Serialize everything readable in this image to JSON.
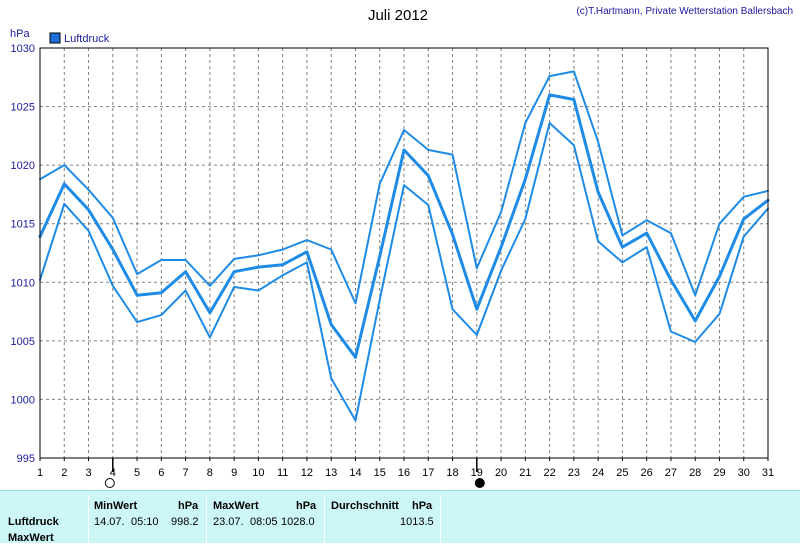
{
  "header": {
    "title": "Juli 2012",
    "credit": "(c)T.Hartmann, Private Wetterstation Ballersbach"
  },
  "colors": {
    "series": "#1e8be6",
    "legend_box": "#1e6fd9",
    "stats_bg": "#ccf7f6"
  },
  "chart_data": {
    "type": "line",
    "title": "Juli 2012",
    "ylabel": "hPa",
    "ylim": [
      995,
      1030
    ],
    "yticks": [
      995,
      1000,
      1005,
      1010,
      1015,
      1020,
      1025,
      1030
    ],
    "xlim": [
      1,
      31
    ],
    "x": [
      1,
      2,
      3,
      4,
      5,
      6,
      7,
      8,
      9,
      10,
      11,
      12,
      13,
      14,
      15,
      16,
      17,
      18,
      19,
      20,
      21,
      22,
      23,
      24,
      25,
      26,
      27,
      28,
      29,
      30,
      31
    ],
    "legend": [
      "Luftdruck"
    ],
    "legend_position": "top-left",
    "grid": true,
    "moon_markers": [
      {
        "day": 4,
        "phase": "full moon"
      },
      {
        "day": 19,
        "phase": "new moon"
      }
    ],
    "series": [
      {
        "name": "Luftdruck",
        "role": "max",
        "values": [
          1018.8,
          1020.0,
          1017.9,
          1015.5,
          1010.7,
          1011.9,
          1011.9,
          1009.7,
          1012.0,
          1012.3,
          1012.8,
          1013.6,
          1012.8,
          1008.2,
          1018.4,
          1023.0,
          1021.3,
          1020.9,
          1011.2,
          1016.0,
          1023.6,
          1027.6,
          1028.0,
          1022.0,
          1014.0,
          1015.3,
          1014.2,
          1008.9,
          1015.0,
          1017.3,
          1017.8
        ]
      },
      {
        "name": "Luftdruck",
        "role": "avg",
        "values": [
          1013.9,
          1018.4,
          1016.2,
          1012.8,
          1008.9,
          1009.1,
          1010.9,
          1007.4,
          1010.9,
          1011.3,
          1011.5,
          1012.6,
          1006.4,
          1003.6,
          1012.2,
          1021.3,
          1019.1,
          1014.1,
          1007.7,
          1013.0,
          1018.8,
          1026.0,
          1025.6,
          1017.7,
          1013.0,
          1014.2,
          1010.2,
          1006.7,
          1010.5,
          1015.4,
          1017.0
        ]
      },
      {
        "name": "Luftdruck",
        "role": "min",
        "values": [
          1010.2,
          1016.7,
          1014.4,
          1009.7,
          1006.6,
          1007.2,
          1009.3,
          1005.3,
          1009.6,
          1009.3,
          1010.6,
          1011.7,
          1001.8,
          998.2,
          1008.5,
          1018.3,
          1016.6,
          1007.7,
          1005.5,
          1011.0,
          1015.4,
          1023.6,
          1021.7,
          1013.5,
          1011.7,
          1013.0,
          1005.8,
          1004.9,
          1007.3,
          1013.9,
          1016.3
        ]
      }
    ]
  },
  "stats": {
    "row_labels": [
      "Luftdruck",
      "MaxWert"
    ],
    "min": {
      "header": "MinWert",
      "unit": "hPa",
      "date": "14.07.",
      "time": "05:10",
      "value": "998.2"
    },
    "max": {
      "header": "MaxWert",
      "unit": "hPa",
      "date": "23.07.",
      "time": "08:05",
      "value": "1028.0"
    },
    "avg": {
      "header": "Durchschnitt",
      "unit": "hPa",
      "value": "1013.5"
    }
  }
}
